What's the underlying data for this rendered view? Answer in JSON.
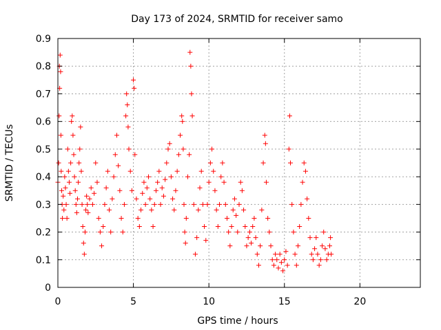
{
  "chart_data": {
    "type": "scatter",
    "title": "Day 173 of 2024, SRMTID for receiver samo",
    "xlabel": "GPS time / hours",
    "ylabel": "SRMTID / TECUs",
    "xlim": [
      0,
      24
    ],
    "ylim": [
      0,
      0.9
    ],
    "xticks": [
      0,
      5,
      10,
      15,
      20
    ],
    "yticks": [
      0,
      0.1,
      0.2,
      0.3,
      0.4,
      0.5,
      0.6,
      0.7,
      0.8,
      0.9
    ],
    "grid": true,
    "marker": "+",
    "color": "#ff0000",
    "series": [
      {
        "name": "SRMTID",
        "points": [
          [
            0.0,
            0.38
          ],
          [
            0.05,
            0.45
          ],
          [
            0.08,
            0.62
          ],
          [
            0.1,
            0.8
          ],
          [
            0.12,
            0.72
          ],
          [
            0.15,
            0.84
          ],
          [
            0.18,
            0.78
          ],
          [
            0.2,
            0.55
          ],
          [
            0.22,
            0.42
          ],
          [
            0.25,
            0.35
          ],
          [
            0.28,
            0.3
          ],
          [
            0.3,
            0.25
          ],
          [
            0.35,
            0.33
          ],
          [
            0.4,
            0.28
          ],
          [
            0.45,
            0.4
          ],
          [
            0.5,
            0.36
          ],
          [
            0.55,
            0.3
          ],
          [
            0.6,
            0.25
          ],
          [
            0.65,
            0.5
          ],
          [
            0.7,
            0.42
          ],
          [
            0.75,
            0.38
          ],
          [
            0.8,
            0.34
          ],
          [
            0.85,
            0.45
          ],
          [
            0.9,
            0.6
          ],
          [
            0.95,
            0.62
          ],
          [
            1.0,
            0.55
          ],
          [
            1.05,
            0.48
          ],
          [
            1.1,
            0.4
          ],
          [
            1.15,
            0.35
          ],
          [
            1.2,
            0.3
          ],
          [
            1.25,
            0.27
          ],
          [
            1.3,
            0.32
          ],
          [
            1.35,
            0.38
          ],
          [
            1.4,
            0.45
          ],
          [
            1.45,
            0.5
          ],
          [
            1.5,
            0.58
          ],
          [
            1.55,
            0.42
          ],
          [
            1.6,
            0.3
          ],
          [
            1.65,
            0.22
          ],
          [
            1.7,
            0.16
          ],
          [
            1.75,
            0.12
          ],
          [
            1.8,
            0.2
          ],
          [
            1.85,
            0.28
          ],
          [
            1.9,
            0.33
          ],
          [
            1.95,
            0.3
          ],
          [
            2.0,
            0.27
          ],
          [
            2.1,
            0.32
          ],
          [
            2.2,
            0.36
          ],
          [
            2.3,
            0.3
          ],
          [
            2.4,
            0.34
          ],
          [
            2.5,
            0.45
          ],
          [
            2.6,
            0.38
          ],
          [
            2.7,
            0.25
          ],
          [
            2.8,
            0.2
          ],
          [
            2.9,
            0.15
          ],
          [
            3.0,
            0.22
          ],
          [
            3.1,
            0.3
          ],
          [
            3.2,
            0.36
          ],
          [
            3.3,
            0.42
          ],
          [
            3.4,
            0.28
          ],
          [
            3.5,
            0.2
          ],
          [
            3.6,
            0.32
          ],
          [
            3.7,
            0.4
          ],
          [
            3.8,
            0.48
          ],
          [
            3.9,
            0.55
          ],
          [
            4.0,
            0.44
          ],
          [
            4.1,
            0.35
          ],
          [
            4.2,
            0.25
          ],
          [
            4.3,
            0.2
          ],
          [
            4.4,
            0.3
          ],
          [
            4.5,
            0.62
          ],
          [
            4.55,
            0.7
          ],
          [
            4.6,
            0.66
          ],
          [
            4.65,
            0.58
          ],
          [
            4.7,
            0.5
          ],
          [
            4.8,
            0.42
          ],
          [
            4.9,
            0.35
          ],
          [
            5.0,
            0.75
          ],
          [
            5.05,
            0.72
          ],
          [
            5.1,
            0.48
          ],
          [
            5.2,
            0.32
          ],
          [
            5.3,
            0.25
          ],
          [
            5.4,
            0.22
          ],
          [
            5.5,
            0.28
          ],
          [
            5.6,
            0.34
          ],
          [
            5.7,
            0.38
          ],
          [
            5.8,
            0.3
          ],
          [
            5.9,
            0.36
          ],
          [
            6.0,
            0.4
          ],
          [
            6.1,
            0.32
          ],
          [
            6.2,
            0.28
          ],
          [
            6.3,
            0.22
          ],
          [
            6.4,
            0.3
          ],
          [
            6.5,
            0.35
          ],
          [
            6.6,
            0.38
          ],
          [
            6.7,
            0.42
          ],
          [
            6.8,
            0.3
          ],
          [
            6.9,
            0.36
          ],
          [
            7.0,
            0.33
          ],
          [
            7.1,
            0.39
          ],
          [
            7.2,
            0.45
          ],
          [
            7.3,
            0.5
          ],
          [
            7.4,
            0.52
          ],
          [
            7.5,
            0.4
          ],
          [
            7.6,
            0.32
          ],
          [
            7.7,
            0.28
          ],
          [
            7.8,
            0.35
          ],
          [
            7.9,
            0.42
          ],
          [
            8.0,
            0.48
          ],
          [
            8.1,
            0.55
          ],
          [
            8.2,
            0.62
          ],
          [
            8.25,
            0.6
          ],
          [
            8.3,
            0.5
          ],
          [
            8.35,
            0.3
          ],
          [
            8.4,
            0.2
          ],
          [
            8.45,
            0.16
          ],
          [
            8.5,
            0.25
          ],
          [
            8.6,
            0.4
          ],
          [
            8.7,
            0.48
          ],
          [
            8.75,
            0.85
          ],
          [
            8.8,
            0.8
          ],
          [
            8.85,
            0.7
          ],
          [
            8.9,
            0.62
          ],
          [
            9.0,
            0.3
          ],
          [
            9.1,
            0.12
          ],
          [
            9.2,
            0.18
          ],
          [
            9.3,
            0.28
          ],
          [
            9.4,
            0.36
          ],
          [
            9.5,
            0.42
          ],
          [
            9.6,
            0.3
          ],
          [
            9.7,
            0.22
          ],
          [
            9.8,
            0.17
          ],
          [
            9.9,
            0.3
          ],
          [
            10.0,
            0.38
          ],
          [
            10.1,
            0.45
          ],
          [
            10.2,
            0.5
          ],
          [
            10.3,
            0.42
          ],
          [
            10.4,
            0.35
          ],
          [
            10.5,
            0.28
          ],
          [
            10.6,
            0.22
          ],
          [
            10.7,
            0.3
          ],
          [
            10.8,
            0.4
          ],
          [
            10.9,
            0.45
          ],
          [
            11.0,
            0.38
          ],
          [
            11.1,
            0.3
          ],
          [
            11.2,
            0.25
          ],
          [
            11.3,
            0.2
          ],
          [
            11.4,
            0.15
          ],
          [
            11.5,
            0.22
          ],
          [
            11.6,
            0.28
          ],
          [
            11.7,
            0.32
          ],
          [
            11.8,
            0.26
          ],
          [
            11.9,
            0.2
          ],
          [
            12.0,
            0.3
          ],
          [
            12.1,
            0.38
          ],
          [
            12.2,
            0.35
          ],
          [
            12.3,
            0.28
          ],
          [
            12.4,
            0.22
          ],
          [
            12.5,
            0.15
          ],
          [
            12.6,
            0.18
          ],
          [
            12.7,
            0.2
          ],
          [
            12.8,
            0.16
          ],
          [
            12.9,
            0.22
          ],
          [
            13.0,
            0.25
          ],
          [
            13.1,
            0.18
          ],
          [
            13.2,
            0.12
          ],
          [
            13.3,
            0.08
          ],
          [
            13.4,
            0.15
          ],
          [
            13.5,
            0.28
          ],
          [
            13.6,
            0.45
          ],
          [
            13.7,
            0.55
          ],
          [
            13.75,
            0.52
          ],
          [
            13.8,
            0.38
          ],
          [
            13.9,
            0.25
          ],
          [
            14.0,
            0.2
          ],
          [
            14.1,
            0.15
          ],
          [
            14.2,
            0.1
          ],
          [
            14.3,
            0.08
          ],
          [
            14.4,
            0.12
          ],
          [
            14.5,
            0.1
          ],
          [
            14.6,
            0.07
          ],
          [
            14.7,
            0.12
          ],
          [
            14.8,
            0.09
          ],
          [
            14.9,
            0.06
          ],
          [
            15.0,
            0.1
          ],
          [
            15.1,
            0.13
          ],
          [
            15.2,
            0.08
          ],
          [
            15.3,
            0.5
          ],
          [
            15.35,
            0.62
          ],
          [
            15.4,
            0.45
          ],
          [
            15.5,
            0.3
          ],
          [
            15.6,
            0.2
          ],
          [
            15.7,
            0.12
          ],
          [
            15.8,
            0.08
          ],
          [
            15.9,
            0.15
          ],
          [
            16.0,
            0.22
          ],
          [
            16.1,
            0.3
          ],
          [
            16.2,
            0.38
          ],
          [
            16.3,
            0.45
          ],
          [
            16.4,
            0.42
          ],
          [
            16.5,
            0.32
          ],
          [
            16.6,
            0.25
          ],
          [
            16.7,
            0.18
          ],
          [
            16.8,
            0.12
          ],
          [
            16.9,
            0.1
          ],
          [
            17.0,
            0.14
          ],
          [
            17.1,
            0.18
          ],
          [
            17.2,
            0.12
          ],
          [
            17.3,
            0.08
          ],
          [
            17.4,
            0.1
          ],
          [
            17.5,
            0.15
          ],
          [
            17.6,
            0.2
          ],
          [
            17.7,
            0.14
          ],
          [
            17.8,
            0.1
          ],
          [
            17.9,
            0.12
          ],
          [
            18.0,
            0.15
          ],
          [
            18.05,
            0.18
          ],
          [
            18.1,
            0.12
          ]
        ]
      }
    ]
  }
}
